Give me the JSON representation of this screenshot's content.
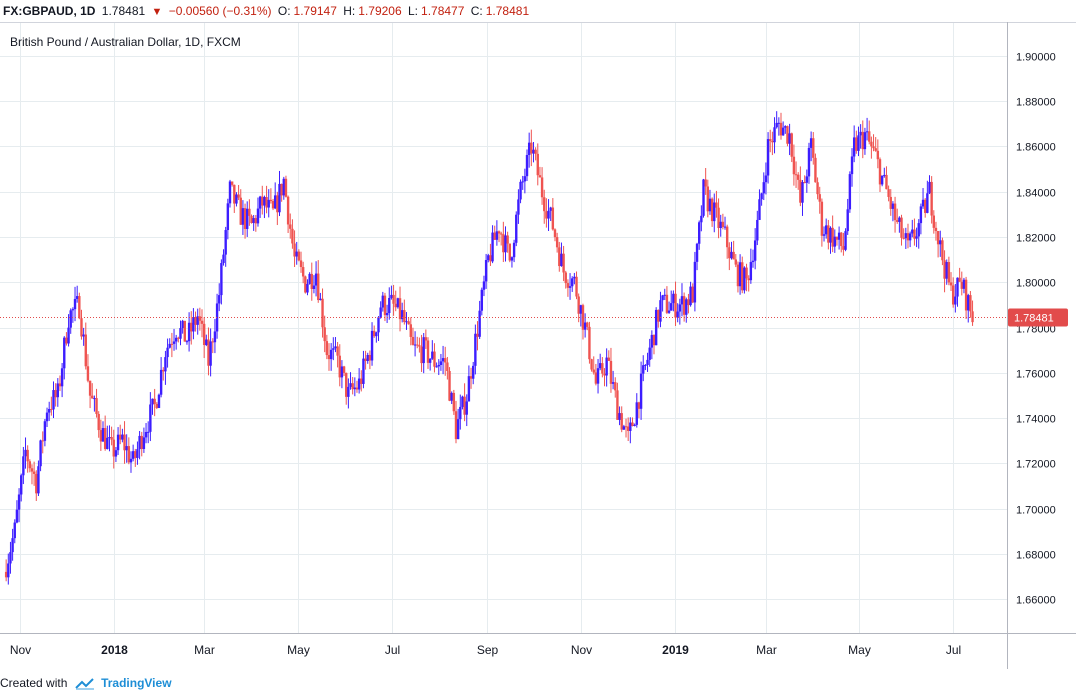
{
  "header": {
    "symbol": "FX:GBPAUD, 1D",
    "last": "1.78481",
    "arrow": "▼",
    "change": "−0.00560 (−0.31%)",
    "o_label": "O:",
    "o_val": "1.79147",
    "h_label": "H:",
    "h_val": "1.79206",
    "l_label": "L:",
    "l_val": "1.78477",
    "c_label": "C:",
    "c_val": "1.78481"
  },
  "footer": {
    "created_with": "Created with",
    "brand": "TradingView"
  },
  "colors": {
    "up": "#3c1dff",
    "down": "#ef5350",
    "grid": "#e6ecef",
    "last_line": "#e24b4b"
  },
  "chart_data": {
    "type": "candlestick",
    "title": "British Pound / Australian Dollar, 1D, FXCM",
    "ylim": [
      1.645,
      1.915
    ],
    "y_ticks": [
      "1.90000",
      "1.88000",
      "1.86000",
      "1.84000",
      "1.82000",
      "1.80000",
      "1.78000",
      "1.76000",
      "1.74000",
      "1.72000",
      "1.70000",
      "1.68000",
      "1.66000"
    ],
    "x_ticks": [
      "Nov",
      "2018",
      "Mar",
      "May",
      "Jul",
      "Sep",
      "Nov",
      "2019",
      "Mar",
      "May",
      "Jul"
    ],
    "last_price": 1.78481,
    "last_price_label": "1.78481",
    "series": [
      {
        "x": "2017-10-23",
        "close": 1.672
      },
      {
        "x": "2017-10-30",
        "close": 1.69
      },
      {
        "x": "2017-11-06",
        "close": 1.725
      },
      {
        "x": "2017-11-13",
        "close": 1.712
      },
      {
        "x": "2017-11-20",
        "close": 1.745
      },
      {
        "x": "2017-11-27",
        "close": 1.75
      },
      {
        "x": "2017-12-04",
        "close": 1.785
      },
      {
        "x": "2017-12-11",
        "close": 1.79
      },
      {
        "x": "2017-12-18",
        "close": 1.75
      },
      {
        "x": "2017-12-25",
        "close": 1.735
      },
      {
        "x": "2018-01-01",
        "close": 1.725
      },
      {
        "x": "2018-01-08",
        "close": 1.73
      },
      {
        "x": "2018-01-15",
        "close": 1.72
      },
      {
        "x": "2018-01-22",
        "close": 1.735
      },
      {
        "x": "2018-01-29",
        "close": 1.745
      },
      {
        "x": "2018-02-05",
        "close": 1.77
      },
      {
        "x": "2018-02-12",
        "close": 1.78
      },
      {
        "x": "2018-02-19",
        "close": 1.775
      },
      {
        "x": "2018-02-26",
        "close": 1.785
      },
      {
        "x": "2018-03-05",
        "close": 1.765
      },
      {
        "x": "2018-03-12",
        "close": 1.795
      },
      {
        "x": "2018-03-19",
        "close": 1.84
      },
      {
        "x": "2018-03-26",
        "close": 1.83
      },
      {
        "x": "2018-04-02",
        "close": 1.825
      },
      {
        "x": "2018-04-09",
        "close": 1.835
      },
      {
        "x": "2018-04-16",
        "close": 1.83
      },
      {
        "x": "2018-04-23",
        "close": 1.845
      },
      {
        "x": "2018-04-30",
        "close": 1.81
      },
      {
        "x": "2018-05-07",
        "close": 1.8
      },
      {
        "x": "2018-05-14",
        "close": 1.805
      },
      {
        "x": "2018-05-21",
        "close": 1.77
      },
      {
        "x": "2018-05-28",
        "close": 1.765
      },
      {
        "x": "2018-06-04",
        "close": 1.75
      },
      {
        "x": "2018-06-11",
        "close": 1.755
      },
      {
        "x": "2018-06-18",
        "close": 1.77
      },
      {
        "x": "2018-06-25",
        "close": 1.79
      },
      {
        "x": "2018-07-02",
        "close": 1.79
      },
      {
        "x": "2018-07-09",
        "close": 1.785
      },
      {
        "x": "2018-07-16",
        "close": 1.77
      },
      {
        "x": "2018-07-23",
        "close": 1.77
      },
      {
        "x": "2018-07-30",
        "close": 1.765
      },
      {
        "x": "2018-08-06",
        "close": 1.765
      },
      {
        "x": "2018-08-13",
        "close": 1.735
      },
      {
        "x": "2018-08-20",
        "close": 1.75
      },
      {
        "x": "2018-08-27",
        "close": 1.78
      },
      {
        "x": "2018-09-03",
        "close": 1.81
      },
      {
        "x": "2018-09-10",
        "close": 1.825
      },
      {
        "x": "2018-09-17",
        "close": 1.81
      },
      {
        "x": "2018-09-24",
        "close": 1.84
      },
      {
        "x": "2018-10-01",
        "close": 1.86
      },
      {
        "x": "2018-10-08",
        "close": 1.84
      },
      {
        "x": "2018-10-15",
        "close": 1.825
      },
      {
        "x": "2018-10-22",
        "close": 1.805
      },
      {
        "x": "2018-10-29",
        "close": 1.8
      },
      {
        "x": "2018-11-05",
        "close": 1.78
      },
      {
        "x": "2018-11-12",
        "close": 1.755
      },
      {
        "x": "2018-11-19",
        "close": 1.765
      },
      {
        "x": "2018-11-26",
        "close": 1.745
      },
      {
        "x": "2018-12-03",
        "close": 1.73
      },
      {
        "x": "2018-12-10",
        "close": 1.75
      },
      {
        "x": "2018-12-17",
        "close": 1.77
      },
      {
        "x": "2018-12-24",
        "close": 1.79
      },
      {
        "x": "2018-12-31",
        "close": 1.79
      },
      {
        "x": "2019-01-07",
        "close": 1.79
      },
      {
        "x": "2019-01-14",
        "close": 1.795
      },
      {
        "x": "2019-01-21",
        "close": 1.84
      },
      {
        "x": "2019-01-28",
        "close": 1.83
      },
      {
        "x": "2019-02-04",
        "close": 1.82
      },
      {
        "x": "2019-02-11",
        "close": 1.805
      },
      {
        "x": "2019-02-18",
        "close": 1.8
      },
      {
        "x": "2019-02-25",
        "close": 1.825
      },
      {
        "x": "2019-03-04",
        "close": 1.86
      },
      {
        "x": "2019-03-11",
        "close": 1.87
      },
      {
        "x": "2019-03-18",
        "close": 1.865
      },
      {
        "x": "2019-03-25",
        "close": 1.835
      },
      {
        "x": "2019-04-01",
        "close": 1.86
      },
      {
        "x": "2019-04-08",
        "close": 1.825
      },
      {
        "x": "2019-04-15",
        "close": 1.82
      },
      {
        "x": "2019-04-22",
        "close": 1.815
      },
      {
        "x": "2019-04-29",
        "close": 1.86
      },
      {
        "x": "2019-05-06",
        "close": 1.865
      },
      {
        "x": "2019-05-13",
        "close": 1.855
      },
      {
        "x": "2019-05-20",
        "close": 1.84
      },
      {
        "x": "2019-05-27",
        "close": 1.825
      },
      {
        "x": "2019-06-03",
        "close": 1.815
      },
      {
        "x": "2019-06-10",
        "close": 1.825
      },
      {
        "x": "2019-06-17",
        "close": 1.84
      },
      {
        "x": "2019-06-24",
        "close": 1.815
      },
      {
        "x": "2019-07-01",
        "close": 1.795
      },
      {
        "x": "2019-07-08",
        "close": 1.799
      },
      {
        "x": "2019-07-15",
        "close": 1.7848
      }
    ]
  }
}
